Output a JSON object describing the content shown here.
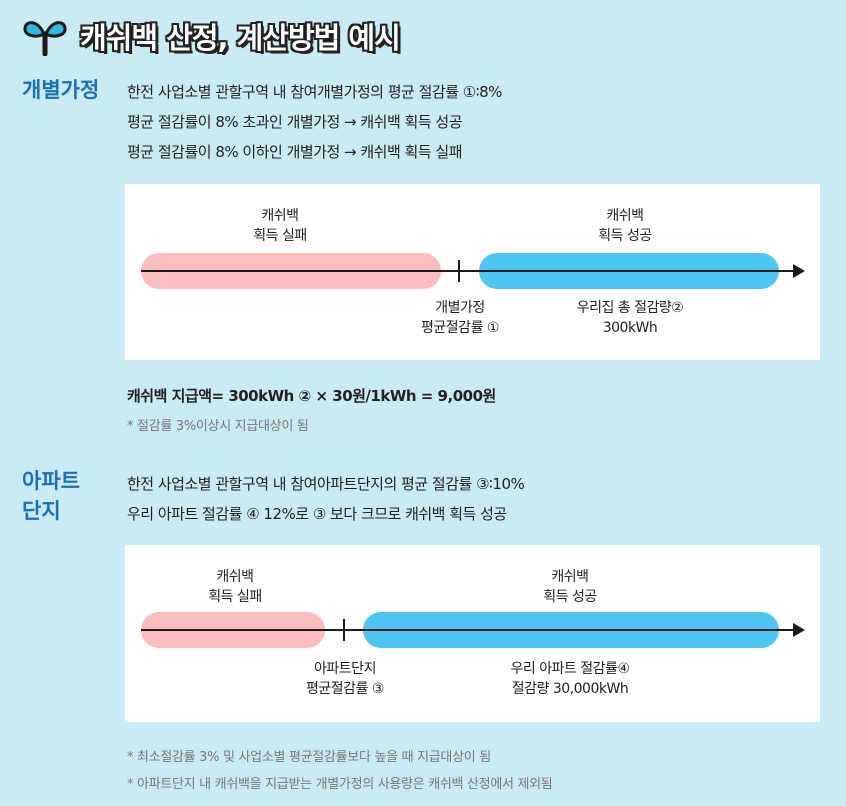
{
  "header": {
    "title": "캐쉬백 산정, 계산방법 예시",
    "icon": "sprout-icon"
  },
  "household": {
    "label": "개별가정",
    "lines": [
      "한전 사업소별 관할구역 내 참여개별가정의 평균 절감률 ①∶8%",
      "평균 절감률이 8% 초과인 개별가정 → 캐쉬백 획득 성공",
      "평균 절감률이 8% 이하인 개별가정 → 캐쉬백 획득 실패"
    ],
    "diagram": {
      "fail_caption": [
        "캐쉬백",
        "획득 실패"
      ],
      "success_caption": [
        "캐쉬백",
        "획득 성공"
      ],
      "tick_caption": [
        "개별가정",
        "평균절감률 ①"
      ],
      "value_caption": [
        "우리집 총 절감량②",
        "300kWh"
      ]
    },
    "formula": "캐쉬백 지급액= 300kWh ② × 30원/1kWh = 9,000원",
    "note": "* 절감률 3%이상시 지급대상이 됨"
  },
  "apartment": {
    "label": [
      "아파트",
      "단지"
    ],
    "lines": [
      "한전 사업소별 관할구역 내 참여아파트단지의 평균 절감률 ③∶10%",
      "우리 아파트 절감률 ④ 12%로 ③ 보다 크므로 캐쉬백 획득 성공"
    ],
    "diagram": {
      "fail_caption": [
        "캐쉬백",
        "획득 실패"
      ],
      "success_caption": [
        "캐쉬백",
        "획득 성공"
      ],
      "tick_caption": [
        "아파트단지",
        "평균절감률 ③"
      ],
      "value_caption": [
        "우리 아파트 절감률④",
        "절감량  30,000kWh"
      ]
    },
    "notes": [
      "* 최소절감률 3% 및 사업소별 평균절감률보다 높을 때 지급대상이 됨",
      "* 아파트단지 내 캐쉬백을 지급받는 개별가정의 사용량은 캐쉬백 산정에서 제외됨"
    ]
  },
  "colors": {
    "fail": "#fbbdbd",
    "success": "#4dc6f3",
    "label": "#1a6fb5",
    "background": "#c9ebf3"
  }
}
